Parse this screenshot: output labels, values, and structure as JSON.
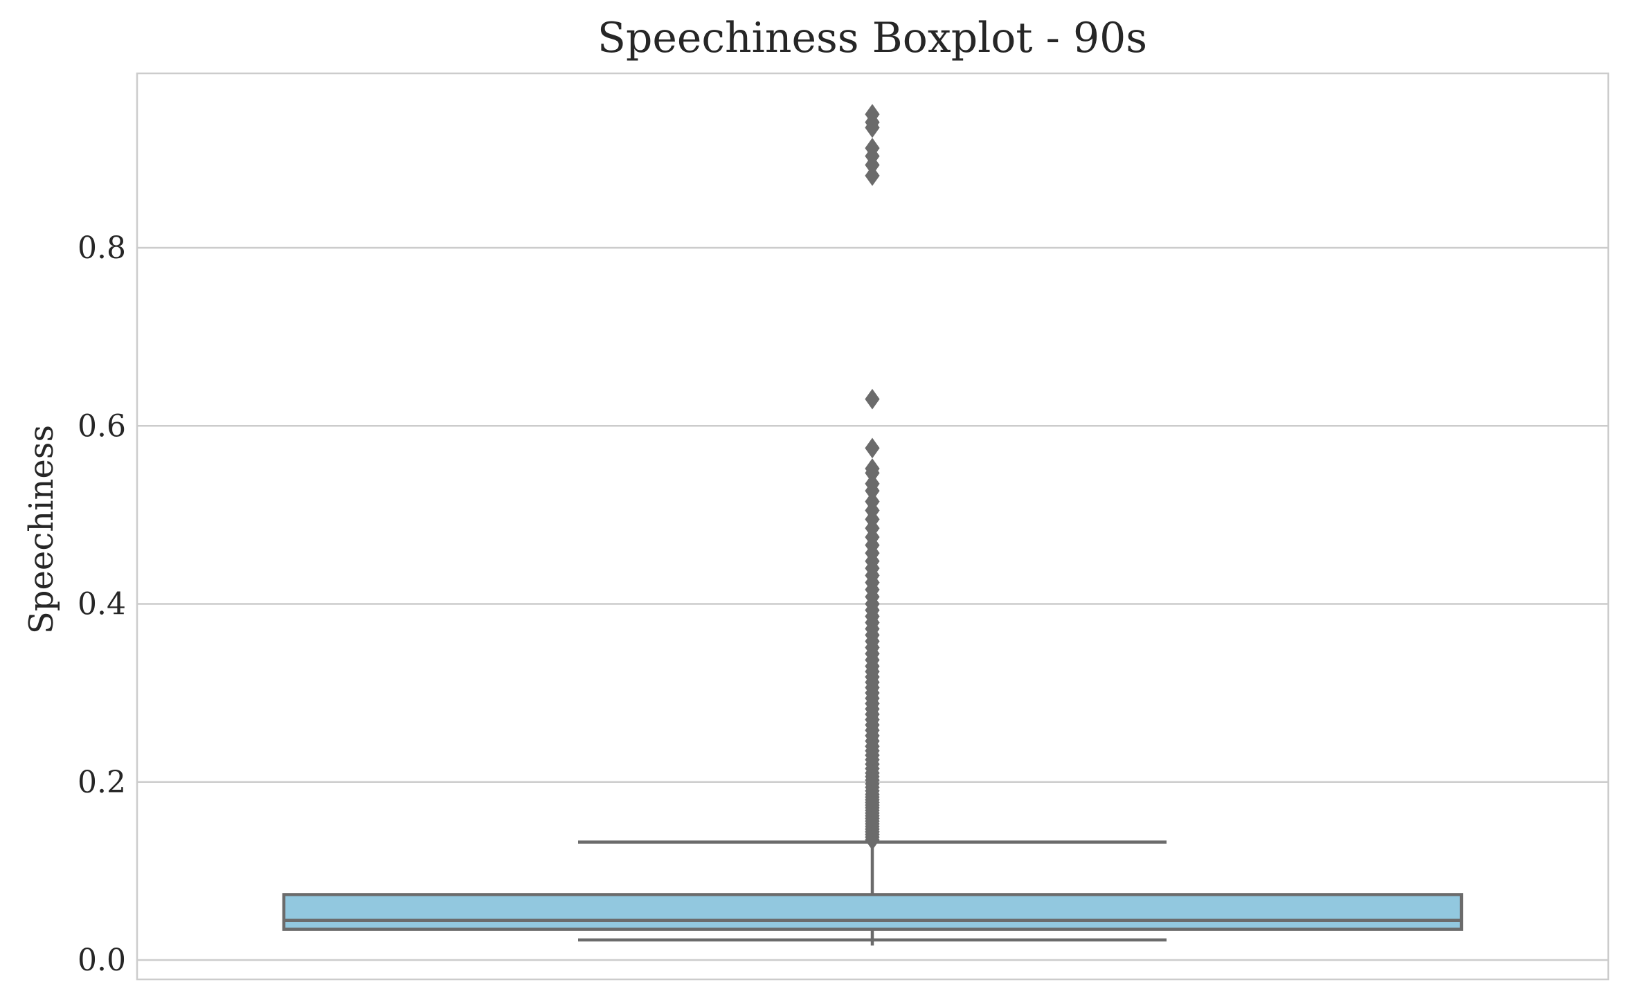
{
  "chart_data": {
    "type": "box",
    "title": "Speechiness Boxplot - 90s",
    "xlabel": "",
    "ylabel": "Speechiness",
    "ylim": [
      -0.023,
      0.99
    ],
    "yticks": [
      0.0,
      0.2,
      0.4,
      0.6,
      0.8
    ],
    "ytick_labels": [
      "0.0",
      "0.2",
      "0.4",
      "0.6",
      "0.8"
    ],
    "grid": "horizontal",
    "legend": "none",
    "box": {
      "whisker_low": 0.0225,
      "q1": 0.0345,
      "median": 0.0445,
      "q3": 0.0735,
      "whisker_high": 0.1325
    },
    "outliers": [
      0.135,
      0.138,
      0.141,
      0.144,
      0.147,
      0.15,
      0.153,
      0.156,
      0.159,
      0.162,
      0.165,
      0.168,
      0.171,
      0.174,
      0.177,
      0.18,
      0.183,
      0.186,
      0.19,
      0.194,
      0.198,
      0.202,
      0.206,
      0.21,
      0.215,
      0.22,
      0.225,
      0.23,
      0.235,
      0.24,
      0.246,
      0.252,
      0.258,
      0.264,
      0.27,
      0.276,
      0.282,
      0.288,
      0.294,
      0.3,
      0.306,
      0.312,
      0.318,
      0.324,
      0.33,
      0.337,
      0.344,
      0.351,
      0.358,
      0.365,
      0.372,
      0.379,
      0.386,
      0.393,
      0.4,
      0.408,
      0.416,
      0.424,
      0.432,
      0.44,
      0.448,
      0.457,
      0.466,
      0.475,
      0.485,
      0.495,
      0.505,
      0.515,
      0.527,
      0.535,
      0.547,
      0.552,
      0.575,
      0.63,
      0.881,
      0.893,
      0.903,
      0.912,
      0.935,
      0.941,
      0.95
    ],
    "colors": {
      "box_fill": "#92c8df",
      "lines": "#6b6b6b",
      "grid": "#cccccc",
      "frame": "#cccccc",
      "text": "#262626"
    }
  }
}
